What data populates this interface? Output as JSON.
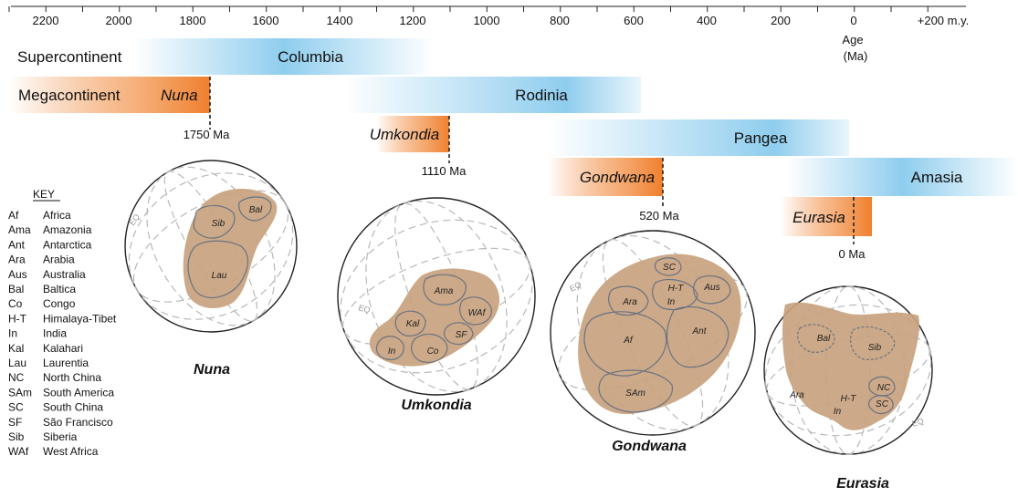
{
  "colors": {
    "supercontinent_bar": "#8fcdee",
    "megacontinent_bar": "#ef7f2d",
    "continent_fill": "#c8a27e",
    "craton_outline": "#6a7382",
    "graticule": "#b8b8b8"
  },
  "axis": {
    "ticks": [
      "2200",
      "2000",
      "1800",
      "1600",
      "1400",
      "1200",
      "1000",
      "800",
      "600",
      "400",
      "200",
      "0",
      "+200 m.y."
    ],
    "unit_label_1": "Age",
    "unit_label_2": "(Ma)"
  },
  "row_labels": {
    "supercontinent": "Supercontinent",
    "megacontinent": "Megacontinent"
  },
  "supercontinents": [
    {
      "name": "Columbia"
    },
    {
      "name": "Rodinia"
    },
    {
      "name": "Pangea"
    },
    {
      "name": "Amasia"
    }
  ],
  "megacontinents": [
    {
      "name": "Nuna",
      "age_label": "1750 Ma"
    },
    {
      "name": "Umkondia",
      "age_label": "1110 Ma"
    },
    {
      "name": "Gondwana",
      "age_label": "520 Ma"
    },
    {
      "name": "Eurasia",
      "age_label": "0 Ma"
    }
  ],
  "key": {
    "title": "KEY",
    "entries": [
      {
        "abbr": "Af",
        "name": "Africa"
      },
      {
        "abbr": "Ama",
        "name": "Amazonia"
      },
      {
        "abbr": "Ant",
        "name": "Antarctica"
      },
      {
        "abbr": "Ara",
        "name": "Arabia"
      },
      {
        "abbr": "Aus",
        "name": "Australia"
      },
      {
        "abbr": "Bal",
        "name": "Baltica"
      },
      {
        "abbr": "Co",
        "name": "Congo"
      },
      {
        "abbr": "H-T",
        "name": "Himalaya-Tibet"
      },
      {
        "abbr": "In",
        "name": "India"
      },
      {
        "abbr": "Kal",
        "name": "Kalahari"
      },
      {
        "abbr": "Lau",
        "name": "Laurentia"
      },
      {
        "abbr": "NC",
        "name": "North China"
      },
      {
        "abbr": "SAm",
        "name": "South America"
      },
      {
        "abbr": "SC",
        "name": "South China"
      },
      {
        "abbr": "SF",
        "name": "São Francisco"
      },
      {
        "abbr": "Sib",
        "name": "Siberia"
      },
      {
        "abbr": "WAf",
        "name": "West Africa"
      }
    ]
  },
  "globes": [
    {
      "title": "Nuna",
      "eq": "EQ",
      "cratons": [
        "Sib",
        "Bal",
        "Lau"
      ]
    },
    {
      "title": "Umkondia",
      "eq": "EQ",
      "cratons": [
        "Ama",
        "WAf",
        "Kal",
        "SF",
        "In",
        "Co"
      ]
    },
    {
      "title": "Gondwana",
      "eq": "EQ",
      "cratons": [
        "SC",
        "H-T",
        "In",
        "Aus",
        "Ara",
        "Af",
        "Ant",
        "SAm"
      ]
    },
    {
      "title": "Eurasia",
      "eq": "EQ",
      "cratons": [
        "Bal",
        "Sib",
        "NC",
        "SC",
        "H-T",
        "In",
        "Ara"
      ]
    }
  ]
}
